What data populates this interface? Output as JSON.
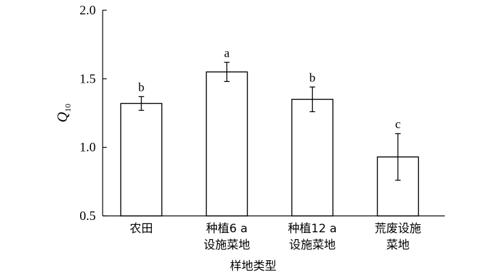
{
  "chart_data": {
    "type": "bar",
    "categories": [
      [
        "农田"
      ],
      [
        "种植6 a",
        "设施菜地"
      ],
      [
        "种植12 a",
        "设施菜地"
      ],
      [
        "荒废设施",
        "菜地"
      ]
    ],
    "values": [
      1.32,
      1.55,
      1.35,
      0.93
    ],
    "error": [
      0.05,
      0.07,
      0.09,
      0.17
    ],
    "significance": [
      "b",
      "a",
      "b",
      "c"
    ],
    "xlabel": "样地类型",
    "ylabel": {
      "main": "Q",
      "sub": "10"
    },
    "ylim": [
      0.5,
      2.0
    ],
    "yticks": [
      "0.5",
      "1.0",
      "1.5",
      "2.0"
    ],
    "grid": false
  }
}
